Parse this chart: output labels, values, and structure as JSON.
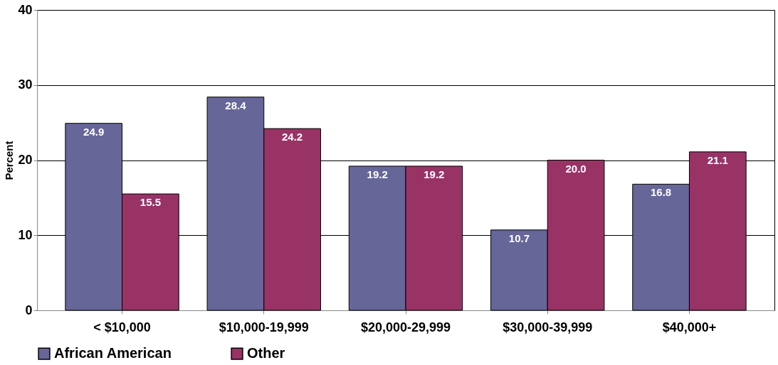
{
  "chart_data": {
    "type": "bar",
    "ylabel": "Percent",
    "categories": [
      "< $10,000",
      "$10,000-19,999",
      "$20,000-29,999",
      "$30,000-39,999",
      "$40,000+"
    ],
    "series": [
      {
        "name": "African American",
        "color": "#666699",
        "values": [
          24.9,
          28.4,
          19.2,
          10.7,
          16.8
        ],
        "value_labels": [
          "24.9",
          "28.4",
          "19.2",
          "10.7",
          "16.8"
        ]
      },
      {
        "name": "Other",
        "color": "#993366",
        "values": [
          15.5,
          24.2,
          19.2,
          20.0,
          21.1
        ],
        "value_labels": [
          "15.5",
          "24.2",
          "19.2",
          "20.0",
          "21.1"
        ]
      }
    ],
    "ylim": [
      0,
      40
    ],
    "yticks": [
      0,
      10,
      20,
      30,
      40
    ],
    "grid": "y",
    "legend": "bottom"
  }
}
